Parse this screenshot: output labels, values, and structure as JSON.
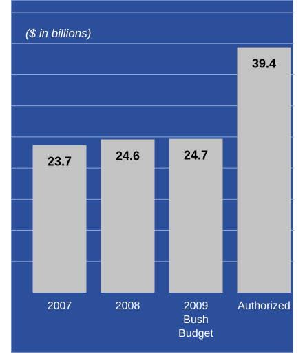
{
  "chart_data": {
    "type": "bar",
    "unit_label": "($ in billions)",
    "categories": [
      [
        "2007"
      ],
      [
        "2008"
      ],
      [
        "2009",
        "Bush",
        "Budget"
      ],
      [
        "Authorized"
      ]
    ],
    "values": [
      23.7,
      24.6,
      24.7,
      39.4
    ],
    "value_labels": [
      "23.7",
      "24.6",
      "24.7",
      "39.4"
    ],
    "ylim": [
      0,
      45
    ],
    "grid": true,
    "colors": {
      "background": "#2b4f9a",
      "bar": "#c3c3c3",
      "grid": "#8ea6d6"
    }
  }
}
